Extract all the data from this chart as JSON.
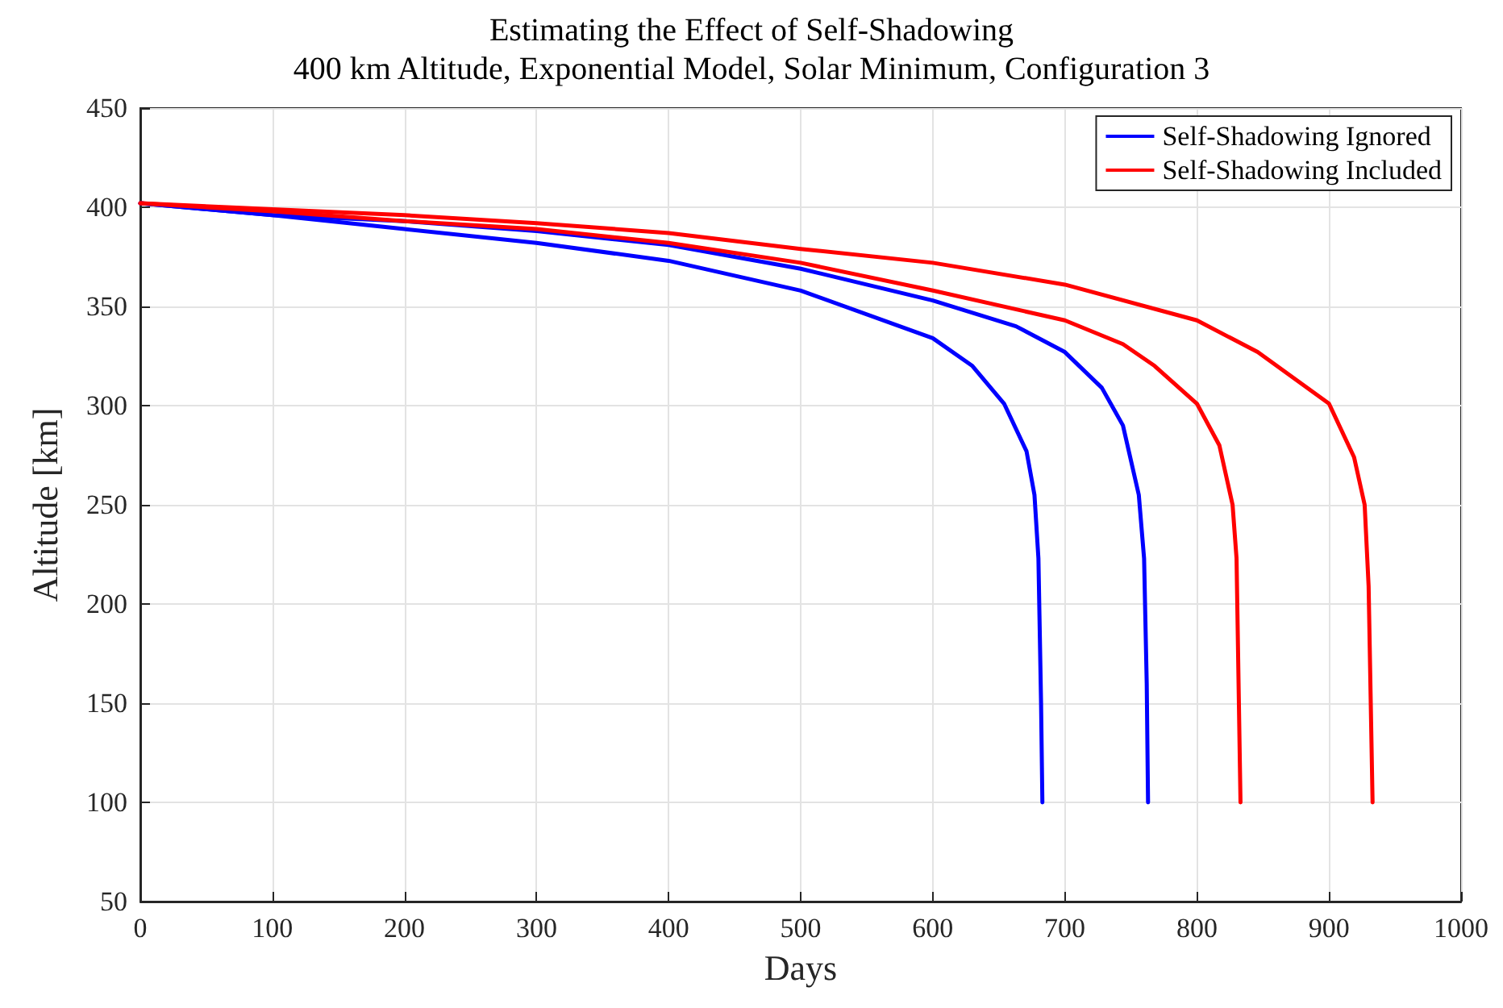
{
  "chart_data": {
    "type": "line",
    "title": "Estimating the Effect of Self-Shadowing",
    "subtitle": "400 km Altitude, Exponential Model, Solar Minimum, Configuration 3",
    "xlabel": "Days",
    "ylabel": "Altitude [km]",
    "xlim": [
      0,
      1000
    ],
    "xticks": [
      0,
      100,
      200,
      300,
      400,
      500,
      600,
      700,
      800,
      900,
      1000
    ],
    "ylim": [
      50,
      450
    ],
    "yticks": [
      50,
      100,
      150,
      200,
      250,
      300,
      350,
      400,
      450
    ],
    "grid": true,
    "legend": "top right",
    "marker": "none",
    "line_style": "solid",
    "series": [
      {
        "name": "Self-Shadowing Ignored",
        "color": "#0000ff",
        "x": [
          0,
          100,
          200,
          300,
          400,
          500,
          600,
          630,
          654,
          671,
          677,
          680,
          682,
          683
        ],
        "values": [
          402,
          396,
          389,
          382,
          373,
          358,
          334,
          320,
          301,
          277,
          255,
          223,
          150,
          100
        ]
      },
      {
        "color": "#0000ff",
        "x": [
          0,
          100,
          200,
          300,
          400,
          500,
          600,
          663,
          700,
          728,
          744,
          756,
          760,
          762,
          763
        ],
        "values": [
          402,
          396,
          393,
          388,
          381,
          369,
          353,
          340,
          327,
          309,
          290,
          255,
          223,
          160,
          100
        ]
      },
      {
        "name": "Self-Shadowing Included",
        "color": "#ff0000",
        "x": [
          0,
          100,
          200,
          300,
          400,
          500,
          600,
          700,
          744,
          768,
          800,
          817,
          827,
          830,
          833
        ],
        "values": [
          402,
          398,
          393,
          389,
          382,
          372,
          358,
          343,
          331,
          320,
          301,
          280,
          250,
          223,
          100
        ]
      },
      {
        "color": "#ff0000",
        "x": [
          0,
          100,
          200,
          300,
          400,
          500,
          600,
          700,
          800,
          846,
          900,
          919,
          927,
          930,
          933
        ],
        "values": [
          402,
          399,
          396,
          392,
          387,
          379,
          372,
          361,
          343,
          327,
          301,
          274,
          250,
          209,
          100
        ]
      }
    ]
  }
}
